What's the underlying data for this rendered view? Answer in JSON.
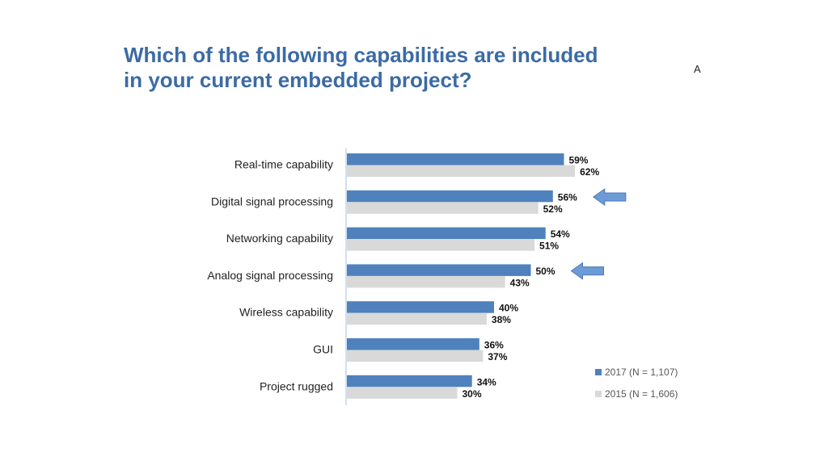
{
  "title_line1": "Which of the following capabilities are included",
  "title_line2": "in your current embedded project?",
  "corner_mark": "A",
  "colors": {
    "series_2017": "#4f81bd",
    "series_2015": "#d9d9d9",
    "title": "#3c6ba5",
    "arrow": "#6d9bd8"
  },
  "chart_data": {
    "type": "bar",
    "orientation": "horizontal",
    "categories": [
      "Real-time capability",
      "Digital signal processing",
      "Networking capability",
      "Analog signal processing",
      "Wireless capability",
      "GUI",
      "Project rugged"
    ],
    "series": [
      {
        "name": "2017 (N = 1,107)",
        "values": [
          59,
          56,
          54,
          50,
          40,
          36,
          34
        ],
        "labels": [
          "59%",
          "56%",
          "54%",
          "50%",
          "40%",
          "36%",
          "34%"
        ]
      },
      {
        "name": "2015 (N = 1,606)",
        "values": [
          62,
          52,
          51,
          43,
          38,
          37,
          30
        ],
        "labels": [
          "62%",
          "52%",
          "51%",
          "43%",
          "38%",
          "37%",
          "30%"
        ]
      }
    ],
    "xlim": [
      0,
      100
    ],
    "grid": false,
    "legend_position": "bottom-right",
    "highlighted_categories": [
      "Digital signal processing",
      "Analog signal processing"
    ]
  }
}
